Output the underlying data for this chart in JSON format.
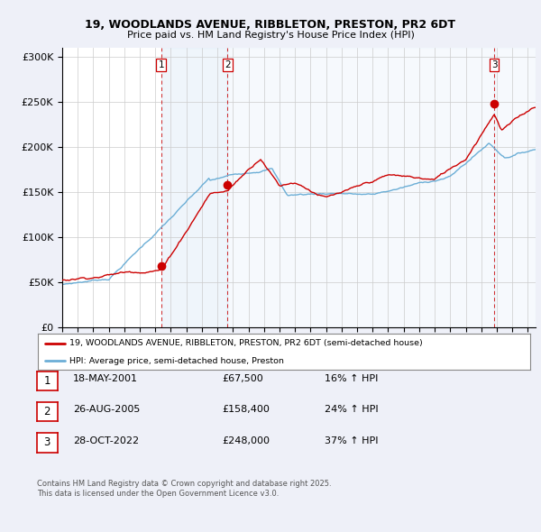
{
  "title_line1": "19, WOODLANDS AVENUE, RIBBLETON, PRESTON, PR2 6DT",
  "title_line2": "Price paid vs. HM Land Registry's House Price Index (HPI)",
  "ylabel_ticks": [
    "£0",
    "£50K",
    "£100K",
    "£150K",
    "£200K",
    "£250K",
    "£300K"
  ],
  "ytick_values": [
    0,
    50000,
    100000,
    150000,
    200000,
    250000,
    300000
  ],
  "ylim": [
    0,
    310000
  ],
  "xlim_start": 1995.0,
  "xlim_end": 2025.5,
  "hpi_color": "#6baed6",
  "price_color": "#cc0000",
  "shade_color": "#ddeeff",
  "purchase_dates": [
    2001.37,
    2005.65,
    2022.83
  ],
  "purchase_prices": [
    67500,
    158400,
    248000
  ],
  "purchase_labels": [
    "1",
    "2",
    "3"
  ],
  "legend_label_red": "19, WOODLANDS AVENUE, RIBBLETON, PRESTON, PR2 6DT (semi-detached house)",
  "legend_label_blue": "HPI: Average price, semi-detached house, Preston",
  "table_rows": [
    [
      "1",
      "18-MAY-2001",
      "£67,500",
      "16% ↑ HPI"
    ],
    [
      "2",
      "26-AUG-2005",
      "£158,400",
      "24% ↑ HPI"
    ],
    [
      "3",
      "28-OCT-2022",
      "£248,000",
      "37% ↑ HPI"
    ]
  ],
  "footnote": "Contains HM Land Registry data © Crown copyright and database right 2025.\nThis data is licensed under the Open Government Licence v3.0.",
  "background_color": "#eef0f8",
  "plot_bg_color": "#ffffff",
  "grid_color": "#cccccc"
}
